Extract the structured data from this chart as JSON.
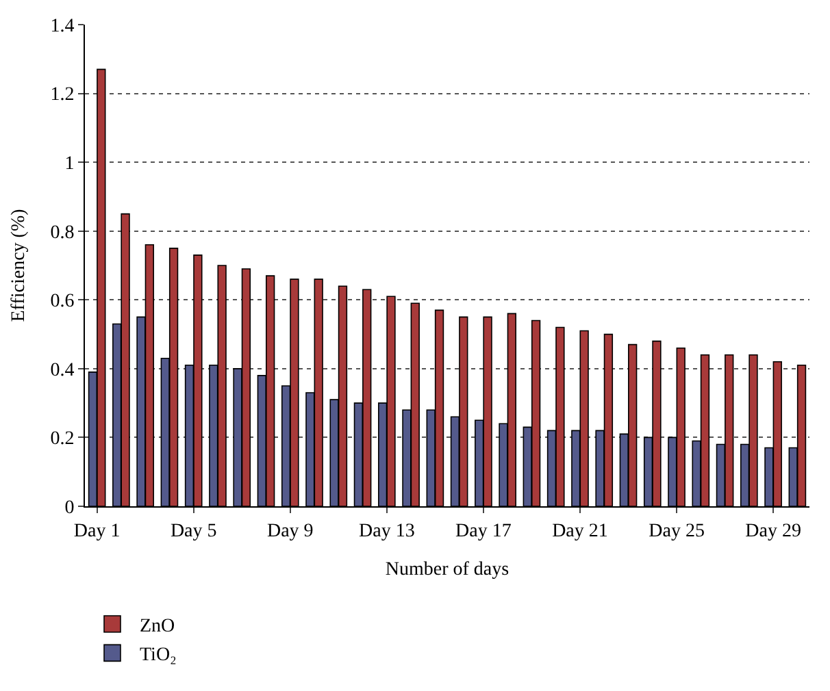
{
  "chart_data": {
    "type": "bar",
    "xlabel": "Number of days",
    "ylabel": "Efficiency (%)",
    "categories": [
      "Day 1",
      null,
      null,
      null,
      "Day 5",
      null,
      null,
      null,
      "Day 9",
      null,
      null,
      null,
      "Day 13",
      null,
      null,
      null,
      "Day 17",
      null,
      null,
      null,
      "Day 21",
      null,
      null,
      null,
      "Day 25",
      null,
      null,
      null,
      "Day 29",
      null
    ],
    "series": [
      {
        "name": "ZnO",
        "color": "#a83a3a",
        "values": [
          1.27,
          0.85,
          0.76,
          0.75,
          0.73,
          0.7,
          0.69,
          0.67,
          0.66,
          0.66,
          0.64,
          0.63,
          0.61,
          0.59,
          0.57,
          0.55,
          0.55,
          0.56,
          0.54,
          0.52,
          0.51,
          0.5,
          0.47,
          0.48,
          0.46,
          0.44,
          0.44,
          0.44,
          0.42,
          0.41
        ]
      },
      {
        "name": "TiO₂",
        "color": "#545a8c",
        "values": [
          0.39,
          0.53,
          0.55,
          0.43,
          0.41,
          0.41,
          0.4,
          0.38,
          0.35,
          0.33,
          0.31,
          0.3,
          0.3,
          0.28,
          0.28,
          0.26,
          0.25,
          0.24,
          0.23,
          0.22,
          0.22,
          0.22,
          0.21,
          0.2,
          0.2,
          0.19,
          0.18,
          0.18,
          0.17,
          0.17
        ]
      }
    ],
    "ylim": [
      0,
      1.4
    ],
    "yticks": [
      0,
      0.2,
      0.4,
      0.6,
      0.8,
      1,
      1.2,
      1.4
    ],
    "grid": "y",
    "legend": "bottom left"
  }
}
